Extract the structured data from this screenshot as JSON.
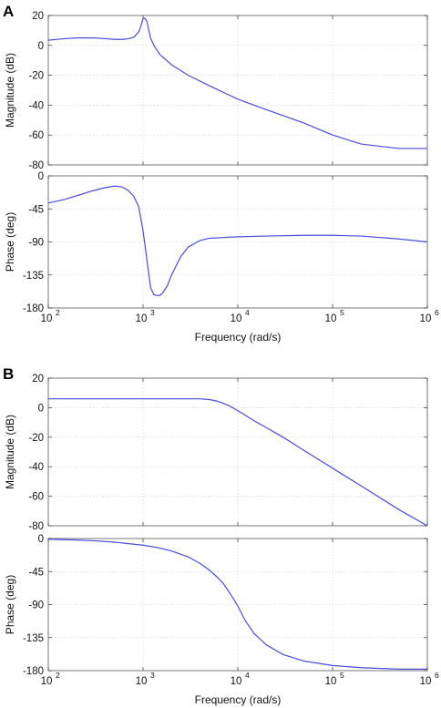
{
  "figure": {
    "panels": [
      "A",
      "B"
    ]
  },
  "colors": {
    "series": "#4a4ae0"
  },
  "chart_data": [
    {
      "panel": "A",
      "type": "line",
      "subplot": "magnitude",
      "xscale": "log",
      "xlim": [
        100,
        1000000
      ],
      "ylim": [
        -80,
        20
      ],
      "ylabel": "Magnitude (dB)",
      "xlabel": "",
      "yticks": [
        "20",
        "0",
        "-20",
        "-40",
        "-60",
        "-80"
      ],
      "ytick_values": [
        20,
        0,
        -20,
        -40,
        -60,
        -80
      ],
      "xtick_values": [
        100,
        1000,
        10000,
        100000,
        1000000
      ],
      "xtick_labels": [],
      "grid": true,
      "series": [
        {
          "x": [
            100,
            150,
            200,
            300,
            400,
            500,
            600,
            700,
            800,
            900,
            950,
            1000,
            1050,
            1100,
            1150,
            1200,
            1300,
            1500,
            2000,
            3000,
            5000,
            10000,
            20000,
            50000,
            100000,
            200000,
            500000,
            1000000
          ],
          "y": [
            3.5,
            4.5,
            5,
            5,
            4.5,
            4,
            4,
            4.5,
            5.5,
            9,
            13,
            18,
            18,
            16,
            10,
            5,
            0,
            -6,
            -13,
            -20,
            -27,
            -36,
            -43,
            -52,
            -60,
            -66,
            -69,
            -69
          ]
        }
      ]
    },
    {
      "panel": "A",
      "type": "line",
      "subplot": "phase",
      "xscale": "log",
      "xlim": [
        100,
        1000000
      ],
      "ylim": [
        -180,
        0
      ],
      "ylabel": "Phase (deg)",
      "xlabel": "Frequency  (rad/s)",
      "yticks": [
        "0",
        "-45",
        "-90",
        "-135",
        "-180"
      ],
      "ytick_values": [
        0,
        -45,
        -90,
        -135,
        -180
      ],
      "xtick_values": [
        100,
        1000,
        10000,
        100000,
        1000000
      ],
      "xtick_labels": [
        "10",
        "10",
        "10",
        "10",
        "10"
      ],
      "xtick_exponents": [
        "2",
        "3",
        "4",
        "5",
        "6"
      ],
      "grid": true,
      "series": [
        {
          "x": [
            100,
            150,
            200,
            300,
            400,
            500,
            600,
            700,
            800,
            900,
            1000,
            1100,
            1200,
            1300,
            1400,
            1500,
            1600,
            1800,
            2000,
            2500,
            3000,
            4000,
            5000,
            7000,
            10000,
            20000,
            50000,
            100000,
            200000,
            500000,
            1000000
          ],
          "y": [
            -37,
            -32,
            -27,
            -20,
            -16,
            -14,
            -15,
            -20,
            -28,
            -42,
            -75,
            -115,
            -152,
            -162,
            -163,
            -163,
            -160,
            -150,
            -135,
            -110,
            -97,
            -88,
            -85,
            -84,
            -83,
            -82,
            -81,
            -81,
            -82,
            -86,
            -90
          ]
        }
      ]
    },
    {
      "panel": "B",
      "type": "line",
      "subplot": "magnitude",
      "xscale": "log",
      "xlim": [
        100,
        1000000
      ],
      "ylim": [
        -80,
        20
      ],
      "ylabel": "Magnitude (dB)",
      "xlabel": "",
      "yticks": [
        "20",
        "0",
        "-20",
        "-40",
        "-60",
        "-80"
      ],
      "ytick_values": [
        20,
        0,
        -20,
        -40,
        -60,
        -80
      ],
      "xtick_values": [
        100,
        1000,
        10000,
        100000,
        1000000
      ],
      "xtick_labels": [],
      "grid": true,
      "series": [
        {
          "x": [
            100,
            300,
            1000,
            2000,
            3000,
            4000,
            5000,
            6000,
            7000,
            8000,
            10000,
            15000,
            20000,
            30000,
            50000,
            100000,
            200000,
            500000,
            1000000
          ],
          "y": [
            6,
            6,
            6,
            6,
            6,
            6,
            5.5,
            4.5,
            3,
            1.5,
            -2,
            -9,
            -13.5,
            -20,
            -29,
            -41,
            -53,
            -69,
            -80
          ]
        }
      ]
    },
    {
      "panel": "B",
      "type": "line",
      "subplot": "phase",
      "xscale": "log",
      "xlim": [
        100,
        1000000
      ],
      "ylim": [
        -180,
        0
      ],
      "ylabel": "Phase (deg)",
      "xlabel": "Frequency  (rad/s)",
      "yticks": [
        "0",
        "-45",
        "-90",
        "-135",
        "-180"
      ],
      "ytick_values": [
        0,
        -45,
        -90,
        -135,
        -180
      ],
      "xtick_values": [
        100,
        1000,
        10000,
        100000,
        1000000
      ],
      "xtick_labels": [
        "10",
        "10",
        "10",
        "10",
        "10"
      ],
      "xtick_exponents": [
        "2",
        "3",
        "4",
        "5",
        "6"
      ],
      "grid": true,
      "series": [
        {
          "x": [
            100,
            200,
            300,
            500,
            700,
            1000,
            1500,
            2000,
            3000,
            4000,
            5000,
            6000,
            7000,
            8000,
            9000,
            10000,
            12000,
            15000,
            20000,
            30000,
            50000,
            100000,
            200000,
            500000,
            1000000
          ],
          "y": [
            -1,
            -2,
            -3,
            -5,
            -7,
            -9,
            -13,
            -17,
            -25,
            -34,
            -43,
            -52,
            -61,
            -72,
            -82,
            -92,
            -112,
            -130,
            -145,
            -158,
            -167,
            -173,
            -176,
            -178,
            -178
          ]
        }
      ]
    }
  ]
}
